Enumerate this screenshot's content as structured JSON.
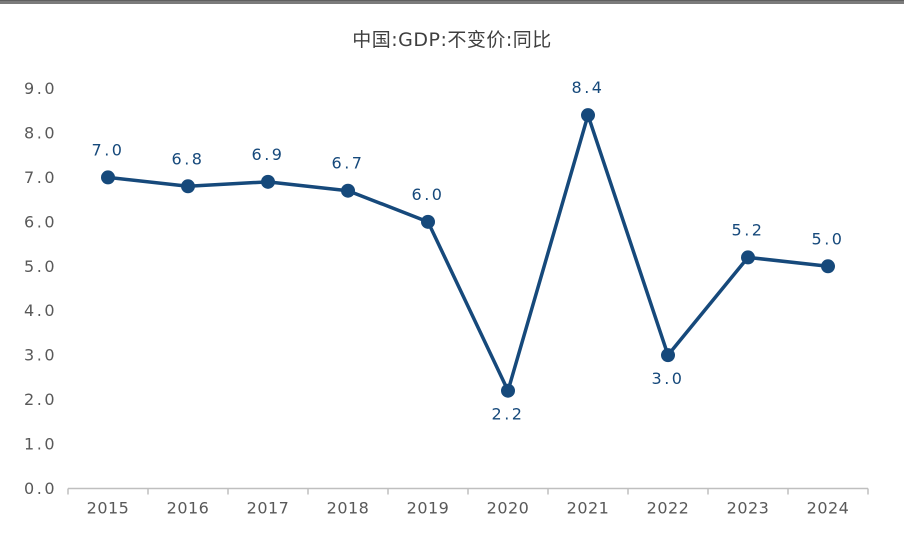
{
  "page": {
    "background": "#ffffff",
    "top_bar_color": "#7b7b7b"
  },
  "chart": {
    "title": "中国:GDP:不变价:同比"
  },
  "chart_data": {
    "type": "line",
    "title": "中国:GDP:不变价:同比",
    "categories": [
      "2015",
      "2016",
      "2017",
      "2018",
      "2019",
      "2020",
      "2021",
      "2022",
      "2023",
      "2024"
    ],
    "series": [
      {
        "name": "中国:GDP:不变价:同比",
        "values": [
          7.0,
          6.8,
          6.9,
          6.7,
          6.0,
          2.2,
          8.4,
          3.0,
          5.2,
          5.0
        ]
      }
    ],
    "data_labels": [
      "7.0",
      "6.8",
      "6.9",
      "6.7",
      "6.0",
      "2.2",
      "8.4",
      "3.0",
      "5.2",
      "5.0"
    ],
    "label_positions": [
      "above",
      "above",
      "above",
      "above",
      "above",
      "below",
      "above",
      "below",
      "above",
      "above"
    ],
    "ylim": [
      0.0,
      9.0
    ],
    "ytick_step": 1.0,
    "ytick_labels": [
      "0.0",
      "1.0",
      "2.0",
      "3.0",
      "4.0",
      "5.0",
      "6.0",
      "7.0",
      "8.0",
      "9.0"
    ],
    "xlabel": "",
    "ylabel": "",
    "grid": false,
    "legend": "none",
    "line_color": "#16497b",
    "marker": "circle",
    "data_label_color": "#16497b",
    "axis_tick_label_color": "#595959",
    "axis_line_color": "#bfbfbf"
  }
}
